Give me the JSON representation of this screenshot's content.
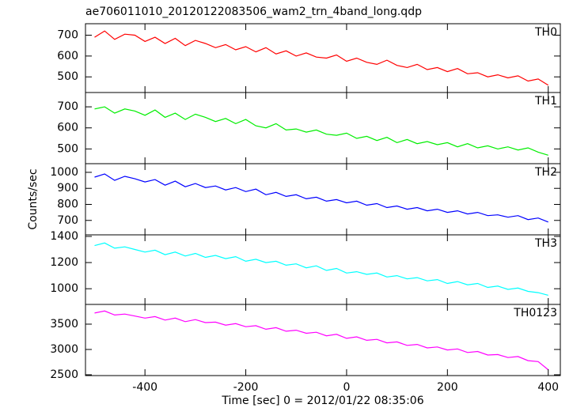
{
  "chart_data": [
    {
      "type": "line",
      "title": "ae706011010_20120122083506_wam2_trn_4band_long.qdp",
      "xlim": [
        -518,
        424
      ],
      "ylim": [
        425,
        755
      ],
      "yticks": [
        500,
        600,
        700
      ],
      "series": [
        {
          "name": "TH0",
          "color": "#ff0000",
          "x": [
            -500,
            -480,
            -460,
            -440,
            -420,
            -400,
            -380,
            -360,
            -340,
            -320,
            -300,
            -280,
            -260,
            -240,
            -220,
            -200,
            -180,
            -160,
            -140,
            -120,
            -100,
            -80,
            -60,
            -40,
            -20,
            0,
            20,
            40,
            60,
            80,
            100,
            120,
            140,
            160,
            180,
            200,
            220,
            240,
            260,
            280,
            300,
            320,
            340,
            360,
            380,
            400
          ],
          "values": [
            690,
            720,
            680,
            705,
            700,
            670,
            690,
            660,
            685,
            650,
            675,
            660,
            640,
            655,
            630,
            645,
            620,
            640,
            610,
            625,
            600,
            615,
            595,
            590,
            605,
            575,
            590,
            570,
            560,
            580,
            555,
            545,
            560,
            535,
            545,
            525,
            540,
            515,
            520,
            500,
            510,
            495,
            505,
            480,
            490,
            460
          ]
        }
      ]
    },
    {
      "type": "line",
      "xlim": [
        -518,
        424
      ],
      "ylim": [
        430,
        768
      ],
      "yticks": [
        500,
        600,
        700
      ],
      "series": [
        {
          "name": "TH1",
          "color": "#00ee00",
          "x": [
            -500,
            -480,
            -460,
            -440,
            -420,
            -400,
            -380,
            -360,
            -340,
            -320,
            -300,
            -280,
            -260,
            -240,
            -220,
            -200,
            -180,
            -160,
            -140,
            -120,
            -100,
            -80,
            -60,
            -40,
            -20,
            0,
            20,
            40,
            60,
            80,
            100,
            120,
            140,
            160,
            180,
            200,
            220,
            240,
            260,
            280,
            300,
            320,
            340,
            360,
            380,
            400
          ],
          "values": [
            690,
            700,
            670,
            690,
            680,
            660,
            685,
            650,
            670,
            640,
            665,
            650,
            630,
            645,
            620,
            640,
            610,
            600,
            620,
            590,
            595,
            580,
            590,
            570,
            565,
            575,
            550,
            560,
            540,
            555,
            530,
            545,
            525,
            535,
            520,
            530,
            510,
            525,
            505,
            515,
            500,
            510,
            495,
            505,
            485,
            470
          ]
        }
      ]
    },
    {
      "type": "line",
      "ylabel": "Counts/sec",
      "xlim": [
        -518,
        424
      ],
      "ylim": [
        610,
        1054
      ],
      "yticks": [
        700,
        800,
        900,
        1000
      ],
      "series": [
        {
          "name": "TH2",
          "color": "#0000ff",
          "x": [
            -500,
            -480,
            -460,
            -440,
            -420,
            -400,
            -380,
            -360,
            -340,
            -320,
            -300,
            -280,
            -260,
            -240,
            -220,
            -200,
            -180,
            -160,
            -140,
            -120,
            -100,
            -80,
            -60,
            -40,
            -20,
            0,
            20,
            40,
            60,
            80,
            100,
            120,
            140,
            160,
            180,
            200,
            220,
            240,
            260,
            280,
            300,
            320,
            340,
            360,
            380,
            400
          ],
          "values": [
            970,
            990,
            950,
            975,
            960,
            940,
            955,
            920,
            945,
            910,
            930,
            905,
            915,
            890,
            905,
            880,
            895,
            860,
            875,
            850,
            860,
            835,
            845,
            820,
            830,
            810,
            820,
            795,
            805,
            780,
            790,
            770,
            780,
            760,
            770,
            750,
            760,
            740,
            750,
            730,
            735,
            720,
            730,
            705,
            715,
            690
          ]
        }
      ]
    },
    {
      "type": "line",
      "xlim": [
        -518,
        424
      ],
      "ylim": [
        880,
        1412
      ],
      "yticks": [
        1000,
        1200,
        1400
      ],
      "series": [
        {
          "name": "TH3",
          "color": "#00ffff",
          "x": [
            -500,
            -480,
            -460,
            -440,
            -420,
            -400,
            -380,
            -360,
            -340,
            -320,
            -300,
            -280,
            -260,
            -240,
            -220,
            -200,
            -180,
            -160,
            -140,
            -120,
            -100,
            -80,
            -60,
            -40,
            -20,
            0,
            20,
            40,
            60,
            80,
            100,
            120,
            140,
            160,
            180,
            200,
            220,
            240,
            260,
            280,
            300,
            320,
            340,
            360,
            380,
            400
          ],
          "values": [
            1330,
            1350,
            1310,
            1320,
            1300,
            1280,
            1295,
            1260,
            1280,
            1250,
            1270,
            1240,
            1255,
            1230,
            1245,
            1210,
            1225,
            1200,
            1210,
            1180,
            1190,
            1160,
            1175,
            1140,
            1155,
            1120,
            1130,
            1110,
            1120,
            1090,
            1100,
            1075,
            1085,
            1060,
            1070,
            1040,
            1055,
            1030,
            1040,
            1010,
            1020,
            995,
            1005,
            980,
            970,
            950
          ]
        }
      ]
    },
    {
      "type": "line",
      "xlabel": "Time [sec] 0 = 2012/01/22 08:35:06",
      "xlim": [
        -518,
        424
      ],
      "xticks": [
        -400,
        -200,
        0,
        200,
        400
      ],
      "ylim": [
        2484,
        3890
      ],
      "yticks": [
        2500,
        3000,
        3500
      ],
      "series": [
        {
          "name": "TH0123",
          "color": "#ff00ff",
          "x": [
            -500,
            -480,
            -460,
            -440,
            -420,
            -400,
            -380,
            -360,
            -340,
            -320,
            -300,
            -280,
            -260,
            -240,
            -220,
            -200,
            -180,
            -160,
            -140,
            -120,
            -100,
            -80,
            -60,
            -40,
            -20,
            0,
            20,
            40,
            60,
            80,
            100,
            120,
            140,
            160,
            180,
            200,
            220,
            240,
            260,
            280,
            300,
            320,
            340,
            360,
            380,
            400
          ],
          "values": [
            3720,
            3760,
            3680,
            3700,
            3660,
            3620,
            3650,
            3580,
            3620,
            3550,
            3590,
            3530,
            3540,
            3480,
            3510,
            3450,
            3470,
            3400,
            3430,
            3360,
            3380,
            3320,
            3340,
            3270,
            3300,
            3220,
            3250,
            3180,
            3200,
            3130,
            3150,
            3080,
            3100,
            3030,
            3050,
            2990,
            3010,
            2940,
            2960,
            2890,
            2900,
            2840,
            2860,
            2780,
            2760,
            2600
          ]
        }
      ]
    }
  ]
}
